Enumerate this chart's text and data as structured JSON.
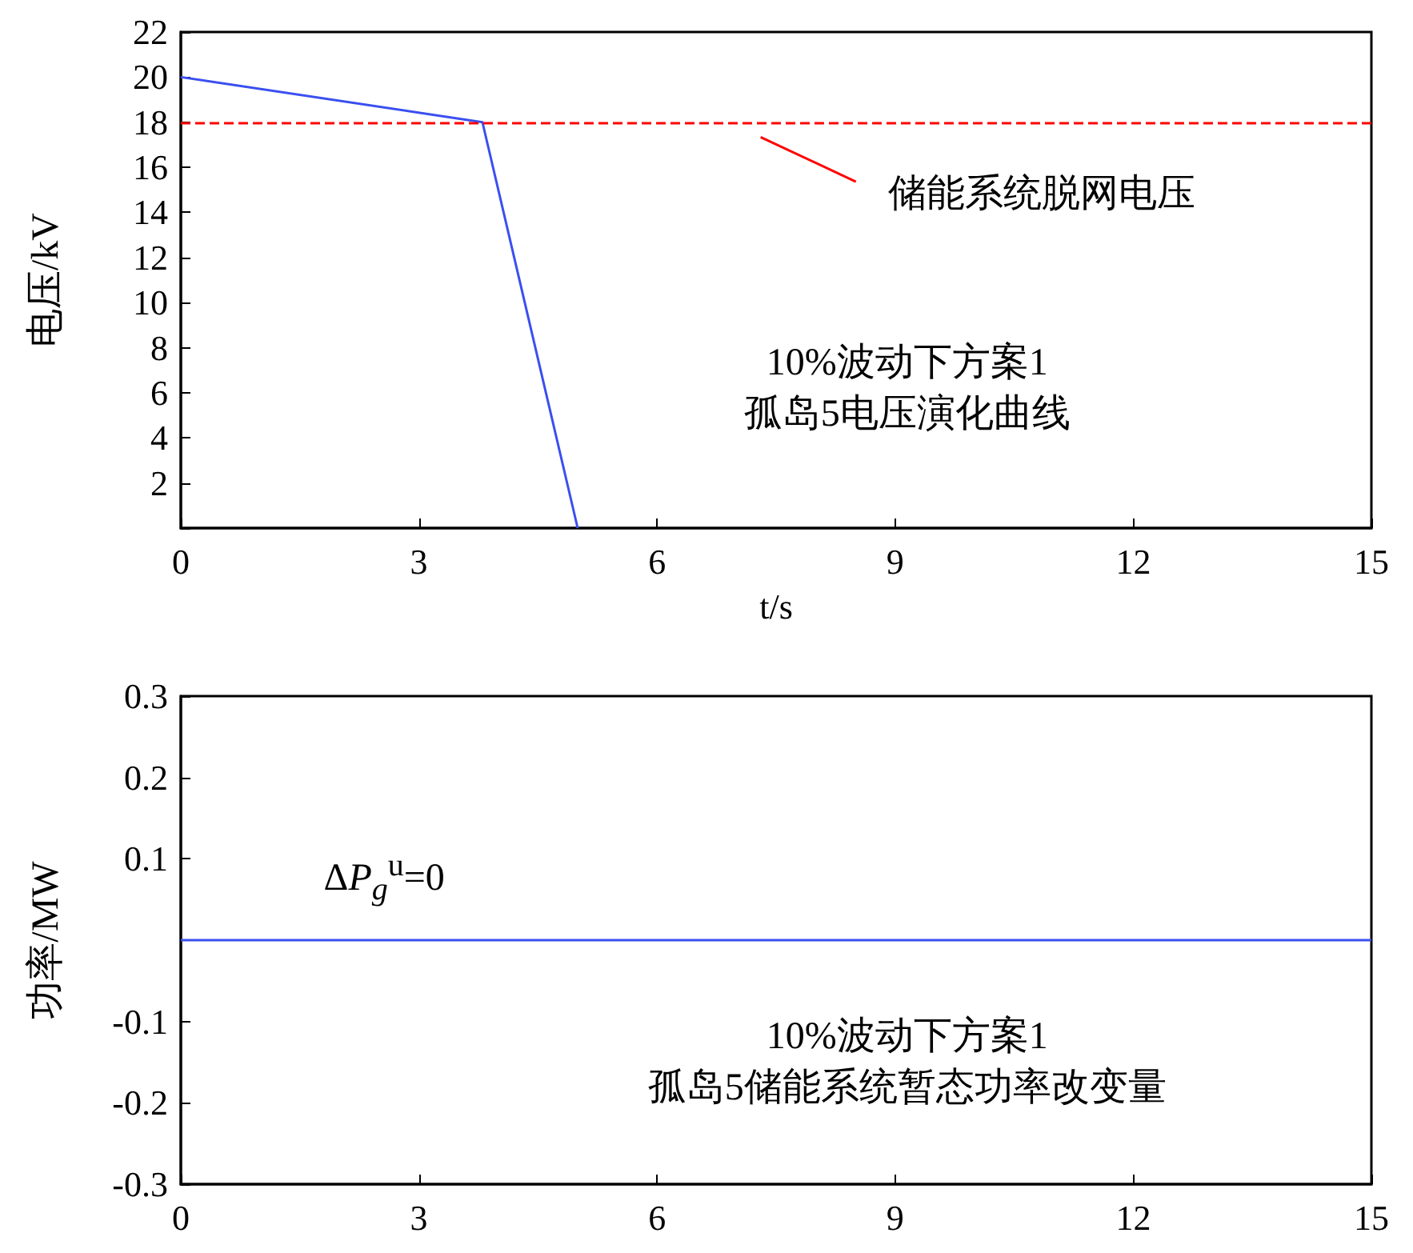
{
  "chart_data": [
    {
      "type": "line",
      "xlabel": "t/s",
      "ylabel": "电压/kV",
      "x": [
        0,
        3.8,
        5.0
      ],
      "series": [
        {
          "color": "#3a4ff0",
          "values": [
            20,
            18,
            0
          ]
        }
      ],
      "xlim": [
        0,
        15
      ],
      "xticks": [
        0,
        3,
        6,
        9,
        12,
        15
      ],
      "ylim": [
        0,
        22
      ],
      "yticks": [
        {
          "value": 0,
          "label": null
        },
        2,
        4,
        6,
        8,
        10,
        12,
        14,
        16,
        18,
        20,
        22
      ],
      "ref_lines": [
        {
          "axis": "y",
          "value": 18,
          "label": "储能系统脱网电压",
          "color": "#ff0000",
          "line_style": "dashed"
        }
      ],
      "annotations": [
        "10%波动下方案1\n孤岛5电压演化曲线"
      ],
      "grid": false,
      "legend": false,
      "marker": "none",
      "line_style": "solid"
    },
    {
      "type": "line",
      "ylabel": "功率/MW",
      "x": [
        0,
        15
      ],
      "series": [
        {
          "name": "ΔP$_{g}$$^{u}$=0",
          "color": "#3a4ff0",
          "values": [
            0,
            0
          ]
        }
      ],
      "xlim": [
        0,
        15
      ],
      "xticks": [
        0,
        3,
        6,
        9,
        12,
        15
      ],
      "ylim": [
        -0.3,
        0.3
      ],
      "yticks": [
        -0.3,
        -0.2,
        -0.1,
        {
          "value": 0,
          "label": null
        },
        0.1,
        0.2,
        0.3
      ],
      "annotations": [
        "10%波动下方案1\n孤岛5储能系统暂态功率改变量"
      ],
      "grid": false,
      "legend": false,
      "marker": "none",
      "line_style": "solid"
    }
  ]
}
